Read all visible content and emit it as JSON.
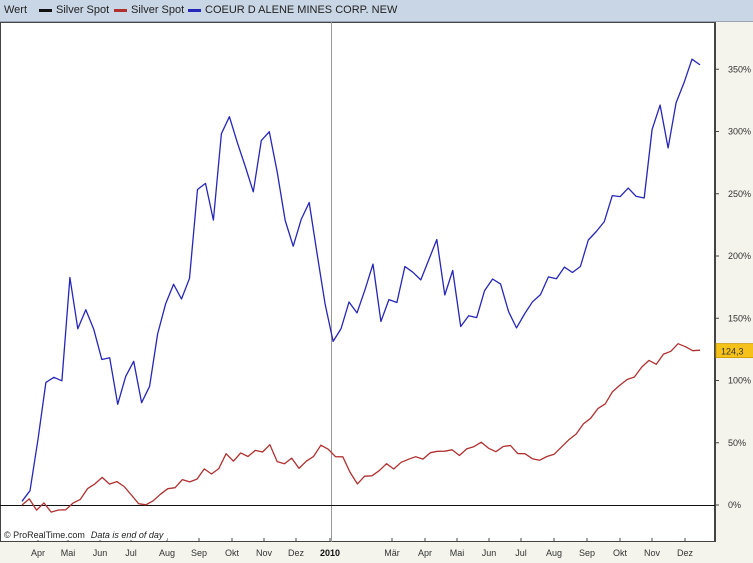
{
  "legend": {
    "title": "Wert",
    "items": [
      {
        "label": "Silver Spot",
        "color": "#111111"
      },
      {
        "label": "Silver Spot",
        "color": "#b03030"
      },
      {
        "label": "COEUR D ALENE MINES CORP. NEW",
        "color": "#2626b8"
      }
    ]
  },
  "footer": {
    "copyright": "© ProRealTime.com",
    "note": "Data is end of day"
  },
  "chart_data": {
    "type": "line",
    "x_ticks": [
      "Apr",
      "Mai",
      "Jun",
      "Jul",
      "Aug",
      "Sep",
      "Okt",
      "Nov",
      "Dez",
      "2010",
      "Mär",
      "Apr",
      "Mai",
      "Jun",
      "Jul",
      "Aug",
      "Sep",
      "Okt",
      "Nov",
      "Dez"
    ],
    "y_ticks": [
      "0%",
      "50%",
      "100%",
      "150%",
      "200%",
      "250%",
      "300%",
      "350%"
    ],
    "ylim": [
      -10,
      385
    ],
    "current_value_label": "124,3",
    "grid": false,
    "legend_position": "top-left",
    "series": [
      {
        "name": "Silver Spot",
        "color": "#b03030",
        "values": [
          0,
          4,
          -3,
          1,
          -6,
          -3,
          -5,
          2,
          5,
          12,
          18,
          22,
          16,
          20,
          14,
          8,
          2,
          -1,
          4,
          9,
          12,
          15,
          20,
          18,
          22,
          28,
          25,
          30,
          40,
          36,
          42,
          38,
          45,
          42,
          48,
          36,
          32,
          38,
          30,
          34,
          40,
          48,
          44,
          40,
          38,
          26,
          18,
          22,
          24,
          28,
          32,
          30,
          34,
          36,
          40,
          36,
          42,
          44,
          42,
          45,
          40,
          44,
          48,
          50,
          45,
          44,
          46,
          48,
          42,
          40,
          38,
          36,
          38,
          42,
          46,
          52,
          58,
          64,
          70,
          78,
          80,
          92,
          96,
          100,
          104,
          110,
          116,
          114,
          120,
          124,
          130,
          126,
          125,
          124
        ]
      },
      {
        "name": "COEUR D ALENE MINES CORP. NEW",
        "color": "#2626b8",
        "values": [
          0,
          12,
          55,
          95,
          105,
          100,
          180,
          145,
          155,
          140,
          120,
          115,
          82,
          105,
          112,
          85,
          95,
          135,
          165,
          175,
          165,
          185,
          250,
          260,
          230,
          295,
          315,
          290,
          270,
          255,
          290,
          300,
          270,
          225,
          210,
          230,
          240,
          205,
          160,
          130,
          145,
          160,
          155,
          175,
          190,
          150,
          165,
          160,
          195,
          185,
          180,
          200,
          210,
          170,
          190,
          140,
          155,
          150,
          170,
          185,
          175,
          155,
          145,
          150,
          165,
          170,
          180,
          185,
          190,
          185,
          195,
          210,
          220,
          230,
          245,
          250,
          255,
          245,
          250,
          300,
          320,
          290,
          320,
          340,
          360,
          350
        ]
      }
    ]
  }
}
